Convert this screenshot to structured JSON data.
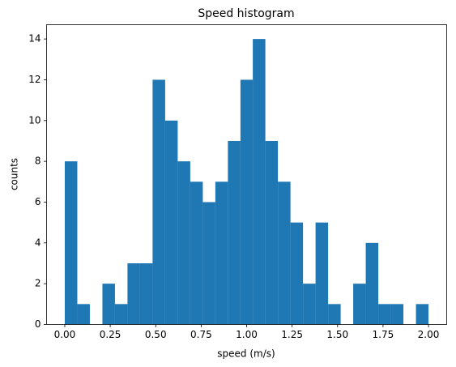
{
  "chart_data": {
    "type": "histogram",
    "title": "Speed histogram",
    "x_label": "speed (m/s)",
    "y_label": "counts",
    "bins": [
      0,
      0.069,
      0.138,
      0.207,
      0.276,
      0.345,
      0.414,
      0.483,
      0.552,
      0.621,
      0.69,
      0.759,
      0.828,
      0.897,
      0.966,
      1.034,
      1.103,
      1.172,
      1.241,
      1.31,
      1.379,
      1.448,
      1.517,
      1.586,
      1.655,
      1.724,
      1.793,
      1.862,
      1.931,
      2.0
    ],
    "values": [
      8,
      1,
      0,
      2,
      1,
      3,
      3,
      12,
      10,
      8,
      7,
      6,
      7,
      9,
      12,
      14,
      9,
      7,
      5,
      2,
      5,
      1,
      0,
      2,
      4,
      1,
      1,
      0,
      1
    ],
    "color": "#1f77b4",
    "xlim": [
      -0.1,
      2.1
    ],
    "ylim": [
      0,
      14.7
    ],
    "xticks": [
      {
        "value": 0,
        "label": "0.00"
      },
      {
        "value": 0.25,
        "label": "0.25"
      },
      {
        "value": 0.5,
        "label": "0.50"
      },
      {
        "value": 0.75,
        "label": "0.75"
      },
      {
        "value": 1,
        "label": "1.00"
      },
      {
        "value": 1.25,
        "label": "1.25"
      },
      {
        "value": 1.5,
        "label": "1.50"
      },
      {
        "value": 1.75,
        "label": "1.75"
      },
      {
        "value": 2,
        "label": "2.00"
      }
    ],
    "yticks": [
      0,
      2,
      4,
      6,
      8,
      10,
      12,
      14
    ]
  }
}
